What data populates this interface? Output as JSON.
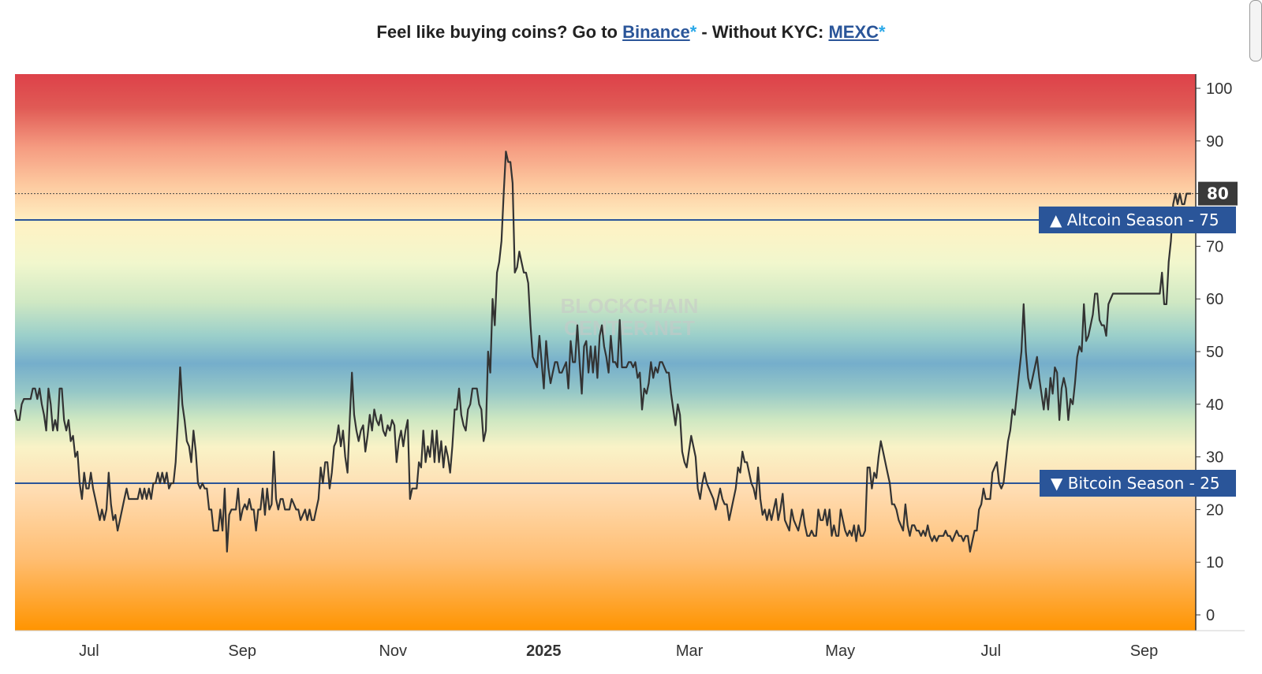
{
  "banner": {
    "prefix": "Feel like buying coins? Go to ",
    "link1": "Binance",
    "star1": "*",
    "middle": " - Without KYC: ",
    "link2": "MEXC",
    "star2": "*",
    "link_color": "#2a5599",
    "star_color": "#2aa8e8"
  },
  "watermark": [
    "BLOCKCHAIN",
    "CENTER.NET"
  ],
  "chart_data": {
    "type": "line",
    "y_axis": {
      "ticks": [
        0,
        10,
        20,
        30,
        40,
        50,
        60,
        70,
        80,
        90,
        100
      ],
      "range": [
        0,
        100
      ],
      "position": "right"
    },
    "x_axis": {
      "labels": [
        "Jul",
        "Sep",
        "Nov",
        "2025",
        "Mar",
        "May",
        "Jul",
        "Sep"
      ],
      "bold_labels": [
        "2025"
      ],
      "range": [
        "2024-06-01",
        "2025-09-20"
      ]
    },
    "current_value": 80,
    "reference_lines": [
      {
        "label": "Altcoin Season",
        "value": 75,
        "marker": "▲",
        "color": "#2a5599"
      },
      {
        "label": "Bitcoin Season",
        "value": 25,
        "marker": "▼",
        "color": "#2a5599"
      }
    ],
    "series": [
      {
        "color": "#333333",
        "values": [
          39,
          37,
          37,
          40,
          41,
          41,
          41,
          41,
          43,
          43,
          41,
          43,
          40,
          38,
          35,
          43,
          40,
          35,
          37,
          35,
          43,
          43,
          37,
          35,
          37,
          33,
          34,
          30,
          31,
          25,
          22,
          27,
          24,
          24,
          27,
          24,
          22,
          20,
          18,
          20,
          18,
          20,
          27,
          21,
          18,
          19,
          16,
          18,
          20,
          22,
          24,
          22,
          22,
          22,
          22,
          22,
          24,
          22,
          24,
          22,
          24,
          22,
          25,
          25,
          27,
          25,
          27,
          25,
          27,
          24,
          25,
          25,
          29,
          37,
          47,
          40,
          37,
          33,
          32,
          29,
          35,
          31,
          25,
          24,
          25,
          24,
          24,
          20,
          20,
          16,
          16,
          16,
          20,
          16,
          24,
          12,
          19,
          20,
          20,
          20,
          24,
          18,
          20,
          21,
          20,
          22,
          20,
          20,
          16,
          20,
          20,
          24,
          19,
          24,
          20,
          21,
          31,
          22,
          20,
          22,
          22,
          20,
          20,
          20,
          22,
          21,
          20,
          20,
          18,
          19,
          20,
          18,
          20,
          18,
          18,
          20,
          22,
          28,
          25,
          29,
          29,
          24,
          27,
          32,
          33,
          36,
          32,
          35,
          30,
          27,
          37,
          46,
          38,
          35,
          33,
          35,
          36,
          31,
          34,
          38,
          35,
          39,
          37,
          36,
          38,
          35,
          34,
          36,
          35,
          37,
          36,
          29,
          33,
          35,
          32,
          35,
          37,
          22,
          24,
          24,
          24,
          29,
          28,
          35,
          29,
          32,
          30,
          35,
          29,
          35,
          29,
          33,
          28,
          32,
          30,
          27,
          32,
          39,
          39,
          43,
          38,
          36,
          35,
          39,
          40,
          43,
          43,
          43,
          40,
          39,
          33,
          35,
          50,
          46,
          60,
          55,
          65,
          67,
          71,
          80,
          88,
          86,
          86,
          82,
          65,
          66,
          69,
          67,
          65,
          65,
          63,
          55,
          49,
          48,
          47,
          53,
          48,
          43,
          52,
          47,
          44,
          46,
          48,
          48,
          46,
          46,
          47,
          48,
          43,
          52,
          48,
          48,
          55,
          48,
          42,
          51,
          52,
          46,
          51,
          46,
          51,
          45,
          53,
          55,
          51,
          49,
          46,
          53,
          48,
          48,
          47,
          56,
          47,
          47,
          47,
          48,
          48,
          47,
          48,
          45,
          46,
          39,
          43,
          42,
          44,
          48,
          45,
          47,
          46,
          48,
          48,
          47,
          46,
          46,
          42,
          39,
          36,
          40,
          38,
          31,
          29,
          28,
          31,
          34,
          32,
          30,
          24,
          22,
          25,
          27,
          25,
          24,
          23,
          22,
          20,
          22,
          24,
          22,
          21,
          21,
          18,
          20,
          22,
          24,
          28,
          27,
          31,
          29,
          29,
          27,
          25,
          24,
          22,
          28,
          22,
          19,
          20,
          18,
          20,
          18,
          20,
          22,
          18,
          20,
          23,
          18,
          17,
          16,
          20,
          18,
          17,
          16,
          18,
          20,
          17,
          15,
          15,
          16,
          15,
          15,
          20,
          18,
          18,
          20,
          17,
          20,
          15,
          17,
          15,
          15,
          20,
          18,
          16,
          15,
          16,
          15,
          17,
          14,
          17,
          15,
          15,
          16,
          28,
          28,
          24,
          27,
          26,
          30,
          33,
          31,
          29,
          27,
          25,
          21,
          21,
          20,
          18,
          17,
          16,
          21,
          17,
          15,
          17,
          17,
          16,
          16,
          15,
          16,
          15,
          17,
          15,
          14,
          15,
          14,
          15,
          15,
          15,
          16,
          15,
          15,
          14,
          15,
          16,
          15,
          15,
          14,
          15,
          15,
          12,
          14,
          16,
          16,
          20,
          21,
          24,
          22,
          22,
          22,
          27,
          28,
          29,
          25,
          24,
          25,
          29,
          33,
          35,
          39,
          38,
          42,
          46,
          50,
          59,
          50,
          45,
          43,
          45,
          47,
          49,
          45,
          42,
          39,
          43,
          39,
          45,
          42,
          47,
          46,
          37,
          43,
          45,
          43,
          37,
          41,
          40,
          44,
          49,
          51,
          50,
          59,
          52,
          53,
          55,
          57,
          61,
          61,
          56,
          55,
          55,
          53,
          59,
          60,
          61,
          61,
          61,
          61,
          61,
          61,
          61,
          61,
          61,
          61,
          61,
          61,
          61,
          61,
          61,
          61,
          61,
          61,
          61,
          61,
          61,
          61,
          65,
          59,
          59,
          67,
          71,
          78,
          80,
          78,
          80,
          78,
          78,
          80,
          80,
          80
        ]
      }
    ],
    "grid": false,
    "legend": "none"
  }
}
